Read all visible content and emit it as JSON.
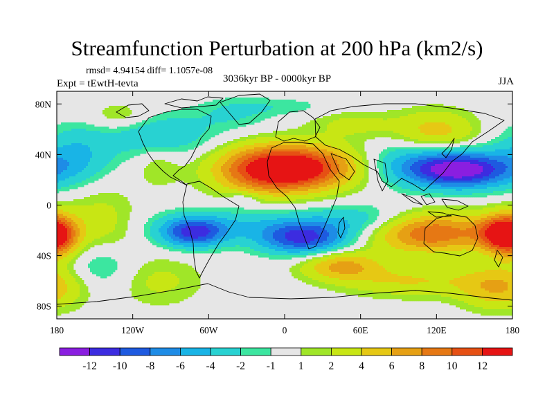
{
  "figure": {
    "title": "Streamfunction Perturbation at 200 hPa (km2/s)",
    "stats": "rmsd= 4.94154 diff= 1.1057e-08",
    "period": "3036kyr BP - 0000kyr BP",
    "experiment": "Expt = tEwtH-tevta",
    "season": "JJA"
  },
  "chart_data": {
    "type": "heatmap",
    "projection": "cylindrical equidistant",
    "xlim": [
      -180,
      180
    ],
    "ylim": [
      -90,
      90
    ],
    "x_ticks": [
      {
        "value": -180,
        "label": "180"
      },
      {
        "value": -120,
        "label": "120W"
      },
      {
        "value": -60,
        "label": "60W"
      },
      {
        "value": 0,
        "label": "0"
      },
      {
        "value": 60,
        "label": "60E"
      },
      {
        "value": 120,
        "label": "120E"
      },
      {
        "value": 180,
        "label": "180"
      }
    ],
    "y_ticks": [
      {
        "value": 80,
        "label": "80N"
      },
      {
        "value": 40,
        "label": "40N"
      },
      {
        "value": 0,
        "label": "0"
      },
      {
        "value": -40,
        "label": "40S"
      },
      {
        "value": -80,
        "label": "80S"
      }
    ],
    "colorbar": {
      "levels": [
        "-12",
        "-10",
        "-8",
        "-6",
        "-4",
        "-2",
        "-1",
        "1",
        "2",
        "4",
        "6",
        "8",
        "10",
        "12"
      ],
      "colors": [
        "#8a1ee0",
        "#3c2ce0",
        "#1e5ae0",
        "#1e8ce6",
        "#19b4e6",
        "#28d2d2",
        "#3ce6a0",
        "#e6e6e6",
        "#a0e628",
        "#c8e614",
        "#e6c814",
        "#e6a014",
        "#e67814",
        "#e65014",
        "#e61414"
      ]
    },
    "features": [
      {
        "lon": -12,
        "lat": 28,
        "value": 12.5,
        "sx": 30,
        "sy": 13
      },
      {
        "lon": 22,
        "lat": 30,
        "value": 8,
        "sx": 30,
        "sy": 12
      },
      {
        "lon": -33,
        "lat": 5,
        "value": -2.2,
        "sx": 8,
        "sy": 4
      },
      {
        "lon": -40,
        "lat": -15,
        "value": -3,
        "sx": 45,
        "sy": 9
      },
      {
        "lon": -72,
        "lat": -22,
        "value": -10,
        "sx": 18,
        "sy": 8
      },
      {
        "lon": 14,
        "lat": -26,
        "value": -10.5,
        "sx": 24,
        "sy": 9
      },
      {
        "lon": 60,
        "lat": -12,
        "value": -3.5,
        "sx": 30,
        "sy": 9
      },
      {
        "lon": 140,
        "lat": 28,
        "value": -13.5,
        "sx": 28,
        "sy": 10
      },
      {
        "lon": 100,
        "lat": 33,
        "value": -4,
        "sx": 26,
        "sy": 12
      },
      {
        "lon": 115,
        "lat": -22,
        "value": 10,
        "sx": 32,
        "sy": 11
      },
      {
        "lon": 170,
        "lat": -22,
        "value": 9,
        "sx": 14,
        "sy": 10
      },
      {
        "lon": -180,
        "lat": -25,
        "value": 9,
        "sx": 12,
        "sy": 12
      },
      {
        "lon": -145,
        "lat": -15,
        "value": 3,
        "sx": 20,
        "sy": 20
      },
      {
        "lon": -145,
        "lat": -48,
        "value": -3,
        "sx": 20,
        "sy": 14
      },
      {
        "lon": -100,
        "lat": -60,
        "value": 2.5,
        "sx": 25,
        "sy": 14
      },
      {
        "lon": 45,
        "lat": -48,
        "value": 6.5,
        "sx": 22,
        "sy": 8
      },
      {
        "lon": 100,
        "lat": -60,
        "value": 4,
        "sx": 38,
        "sy": 9
      },
      {
        "lon": 170,
        "lat": -65,
        "value": 6,
        "sx": 22,
        "sy": 12
      },
      {
        "lon": -165,
        "lat": 40,
        "value": -4,
        "sx": 20,
        "sy": 16
      },
      {
        "lon": -100,
        "lat": 32,
        "value": 2,
        "sx": 12,
        "sy": 12
      },
      {
        "lon": -100,
        "lat": 55,
        "value": -4,
        "sx": 30,
        "sy": 12
      },
      {
        "lon": 120,
        "lat": 58,
        "value": 5,
        "sx": 22,
        "sy": 12
      },
      {
        "lon": 55,
        "lat": 64,
        "value": 2.5,
        "sx": 25,
        "sy": 8
      },
      {
        "lon": -40,
        "lat": 72,
        "value": -2,
        "sx": 22,
        "sy": 9
      },
      {
        "lon": -130,
        "lat": 70,
        "value": 2.5,
        "sx": 18,
        "sy": 8
      },
      {
        "lon": 0,
        "lat": 78,
        "value": -1.5,
        "sx": 30,
        "sy": 5
      }
    ]
  }
}
